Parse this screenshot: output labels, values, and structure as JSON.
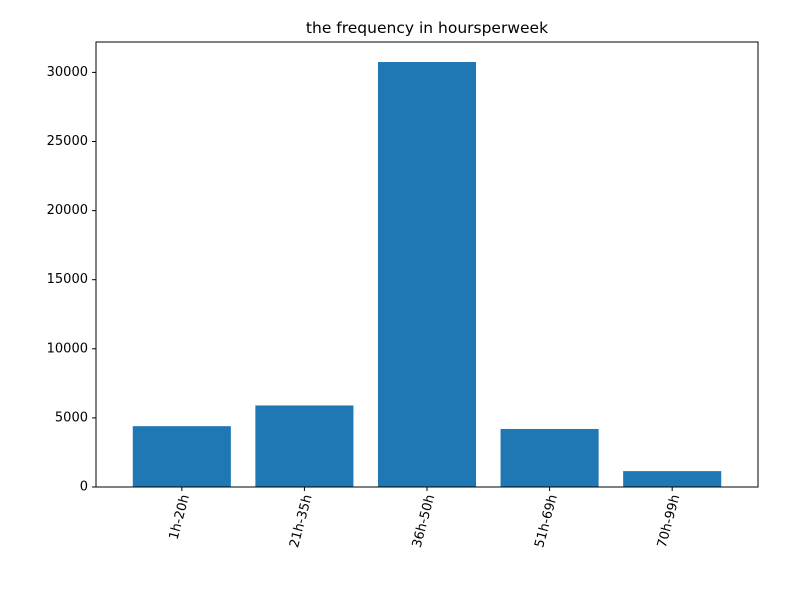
{
  "chart_data": {
    "type": "bar",
    "title": "the frequency in hoursperweek",
    "xlabel": "",
    "ylabel": "",
    "categories": [
      "1h-20h",
      "21h-35h",
      "36h-50h",
      "51h-69h",
      "70h-99h"
    ],
    "values": [
      4400,
      5900,
      30750,
      4200,
      1150
    ],
    "ylim": [
      0,
      32200
    ],
    "yticks": [
      0,
      5000,
      10000,
      15000,
      20000,
      25000,
      30000
    ],
    "grid": false,
    "legend": "none",
    "x_tick_rotation_deg": 75,
    "colors": {
      "bar": "#1f77b4"
    }
  }
}
